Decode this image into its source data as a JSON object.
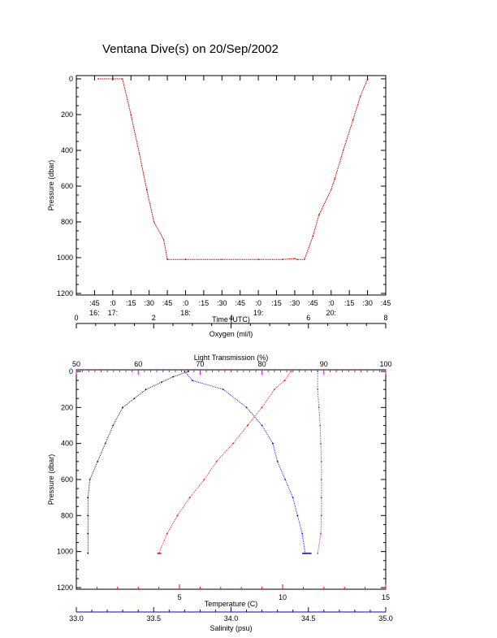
{
  "title": "Ventana Dive(s) on 20/Sep/2002",
  "colors": {
    "axis": "#000000",
    "time_trace": "#cc0000",
    "oxygen": "#000000",
    "temperature": "#ff0000",
    "salinity": "#0000cc",
    "light_transmission": "#dd00dd"
  },
  "chart_data": [
    {
      "type": "line",
      "title": "Ventana Dive(s) on 20/Sep/2002",
      "xlabel": "Time (UTC)",
      "ylabel": "Pressure (dbar)",
      "y_inverted": true,
      "ylim": [
        0,
        1200
      ],
      "y_ticks": [
        "0",
        "200",
        "400",
        "600",
        "800",
        "1000",
        "1200"
      ],
      "x_ticks": [
        {
          "minute": ":45",
          "hour": "16:"
        },
        {
          "minute": ":0",
          "hour": "17:"
        },
        {
          "minute": ":15",
          "hour": ""
        },
        {
          "minute": ":30",
          "hour": ""
        },
        {
          "minute": ":45",
          "hour": ""
        },
        {
          "minute": ":0",
          "hour": "18:"
        },
        {
          "minute": ":15",
          "hour": ""
        },
        {
          "minute": ":30",
          "hour": ""
        },
        {
          "minute": ":45",
          "hour": ""
        },
        {
          "minute": ":0",
          "hour": "19:"
        },
        {
          "minute": ":15",
          "hour": ""
        },
        {
          "minute": ":30",
          "hour": ""
        },
        {
          "minute": ":45",
          "hour": ""
        },
        {
          "minute": ":0",
          "hour": "20:"
        },
        {
          "minute": ":15",
          "hour": ""
        },
        {
          "minute": ":30",
          "hour": ""
        },
        {
          "minute": ":45",
          "hour": ""
        }
      ],
      "series": [
        {
          "x_minutes_utc": [
            1008,
            1020,
            1028,
            1035,
            1042,
            1048,
            1054,
            1062,
            1065,
            1080,
            1110,
            1140,
            1160,
            1170,
            1172,
            1178,
            1185,
            1190,
            1200,
            1203,
            1210,
            1218,
            1224,
            1230
          ],
          "pressure": [
            0,
            0,
            0,
            200,
            420,
            620,
            800,
            900,
            1010,
            1010,
            1010,
            1010,
            1010,
            1005,
            1010,
            1010,
            880,
            760,
            620,
            560,
            400,
            230,
            100,
            0
          ]
        }
      ]
    },
    {
      "type": "scatter",
      "ylabel": "Pressure (dbar)",
      "y_inverted": true,
      "ylim": [
        0,
        1200
      ],
      "y_ticks": [
        "0",
        "200",
        "400",
        "600",
        "800",
        "1000",
        "1200"
      ],
      "axes": {
        "oxygen": {
          "label": "Oxygen (ml/l)",
          "range": [
            0,
            8
          ],
          "ticks": [
            "0",
            "2",
            "4",
            "6",
            "8"
          ]
        },
        "light_transmission": {
          "label": "Light Transmission (%)",
          "range": [
            50,
            100
          ],
          "ticks": [
            "50",
            "60",
            "70",
            "80",
            "90",
            "100"
          ]
        },
        "temperature": {
          "label": "Temperature (C)",
          "range": [
            0,
            15
          ],
          "ticks": [
            "5",
            "10",
            "15"
          ]
        },
        "salinity": {
          "label": "Salinity (psu)",
          "range": [
            33.0,
            35.0
          ],
          "ticks": [
            "33.0",
            "33.5",
            "34.0",
            "34.5",
            "35.0"
          ]
        }
      },
      "series": [
        {
          "axis": "oxygen",
          "pressure": [
            0,
            30,
            60,
            100,
            150,
            200,
            300,
            400,
            500,
            600,
            700,
            800,
            900,
            1010
          ],
          "values": [
            2.9,
            2.5,
            2.2,
            1.8,
            1.5,
            1.2,
            0.95,
            0.75,
            0.55,
            0.35,
            0.3,
            0.3,
            0.3,
            0.3
          ]
        },
        {
          "axis": "temperature",
          "pressure": [
            0,
            50,
            100,
            200,
            300,
            400,
            500,
            600,
            700,
            800,
            900,
            1010
          ],
          "values": [
            10.4,
            10.1,
            9.6,
            9.0,
            8.3,
            7.6,
            6.8,
            6.2,
            5.5,
            4.9,
            4.4,
            4.0
          ]
        },
        {
          "axis": "salinity",
          "pressure": [
            0,
            50,
            100,
            200,
            300,
            400,
            500,
            600,
            700,
            800,
            900,
            1010
          ],
          "values": [
            33.7,
            33.75,
            33.95,
            34.1,
            34.2,
            34.27,
            34.3,
            34.35,
            34.4,
            34.43,
            34.46,
            34.48
          ]
        },
        {
          "axis": "light_transmission",
          "pressure": [
            0,
            100,
            200,
            300,
            400,
            500,
            600,
            700,
            800,
            900,
            1010
          ],
          "values": [
            89.0,
            89.0,
            89.2,
            89.4,
            89.5,
            89.6,
            89.6,
            89.6,
            89.6,
            89.5,
            89.0
          ]
        }
      ]
    }
  ]
}
